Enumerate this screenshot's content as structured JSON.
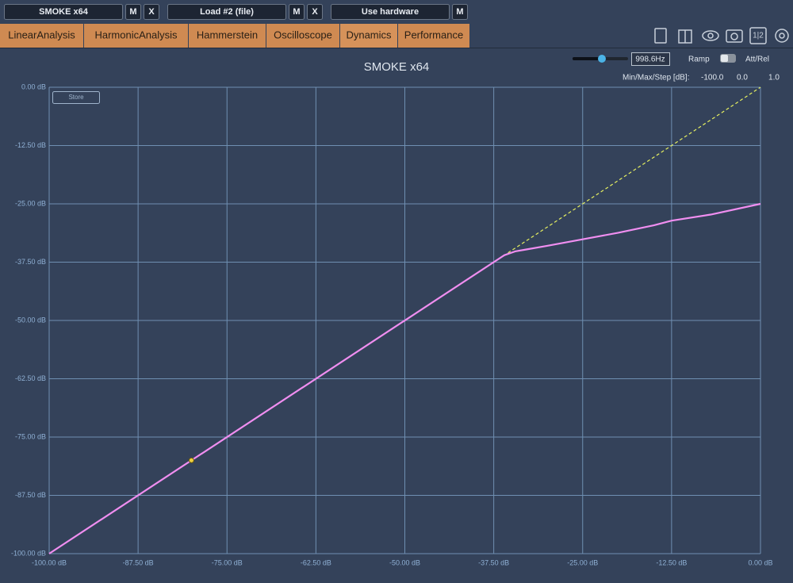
{
  "toolbar": [
    {
      "label": "SMOKE x64",
      "buttons": [
        "M",
        "X"
      ]
    },
    {
      "label": "Load #2 (file)",
      "buttons": [
        "M",
        "X"
      ]
    },
    {
      "label": "Use hardware",
      "buttons": [
        "M"
      ]
    }
  ],
  "tabs": [
    "LinearAnalysis",
    "HarmonicAnalysis",
    "Hammerstein",
    "Oscilloscope",
    "Dynamics",
    "Performance"
  ],
  "icon_split_label": "1|2",
  "controls": {
    "frequency": "998.6Hz",
    "ramp": "Ramp",
    "att_rel": "Att/Rel",
    "min_max_step_label": "Min/Max/Step [dB]:",
    "min": "-100.0",
    "max": "0.0",
    "step": "1.0"
  },
  "store_button": "Store",
  "chart_data": {
    "type": "line",
    "title": "SMOKE x64",
    "xlim": [
      -100,
      0
    ],
    "ylim": [
      -100,
      0
    ],
    "xticks": [
      {
        "value": -100,
        "label": "-100.00 dB"
      },
      {
        "value": -87.5,
        "label": "-87.50 dB"
      },
      {
        "value": -75,
        "label": "-75.00 dB"
      },
      {
        "value": -62.5,
        "label": "-62.50 dB"
      },
      {
        "value": -50,
        "label": "-50.00 dB"
      },
      {
        "value": -37.5,
        "label": "-37.50 dB"
      },
      {
        "value": -25,
        "label": "-25.00 dB"
      },
      {
        "value": -12.5,
        "label": "-12.50 dB"
      },
      {
        "value": 0,
        "label": "0.00 dB"
      }
    ],
    "yticks": [
      {
        "value": -100,
        "label": "-100.00 dB"
      },
      {
        "value": -87.5,
        "label": "-87.50 dB"
      },
      {
        "value": -75,
        "label": "-75.00 dB"
      },
      {
        "value": -62.5,
        "label": "-62.50 dB"
      },
      {
        "value": -50,
        "label": "-50.00 dB"
      },
      {
        "value": -37.5,
        "label": "-37.50 dB"
      },
      {
        "value": -25,
        "label": "-25.00 dB"
      },
      {
        "value": -12.5,
        "label": "-12.50 dB"
      },
      {
        "value": 0,
        "label": "0.00 dB"
      }
    ],
    "grid": true,
    "series": [
      {
        "color": "#e6f060",
        "dashed": true,
        "x": [
          -35.5,
          0
        ],
        "values": [
          -35.5,
          0
        ]
      },
      {
        "color": "#f08ef0",
        "x": [
          -100,
          -36,
          -34.5,
          -33,
          -30,
          -25,
          -20,
          -15,
          -12.5,
          -7,
          0
        ],
        "values": [
          -100,
          -36,
          -35.2,
          -34.8,
          -34,
          -32.6,
          -31.2,
          -29.6,
          -28.6,
          -27.3,
          -25
        ]
      }
    ],
    "marker": {
      "color": "#f0d040",
      "x": -80,
      "y": -80
    }
  }
}
